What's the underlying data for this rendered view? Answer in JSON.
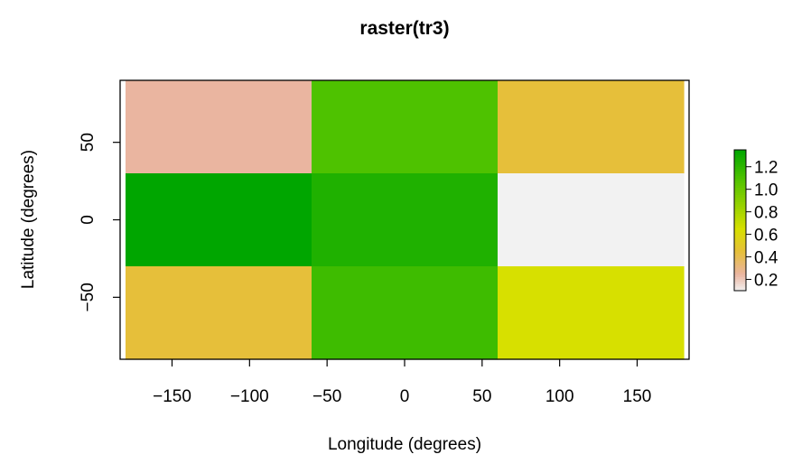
{
  "chart_data": {
    "type": "heatmap",
    "title": "raster(tr3)",
    "xlabel": "Longitude (degrees)",
    "ylabel": "Latitude (degrees)",
    "xlim": [
      -180,
      180
    ],
    "ylim": [
      -90,
      90
    ],
    "x_ticks": [
      -150,
      -100,
      -50,
      0,
      50,
      100,
      150
    ],
    "y_ticks": [
      -50,
      0,
      50
    ],
    "x_tick_labels": [
      "−150",
      "−100",
      "−50",
      "0",
      "50",
      "100",
      "150"
    ],
    "y_tick_labels": [
      "−50",
      "0",
      "50"
    ],
    "x_edges": [
      -180,
      -60,
      60,
      180
    ],
    "y_edges": [
      90,
      30,
      -30,
      -90
    ],
    "values": [
      [
        0.25,
        1.1,
        0.45
      ],
      [
        1.35,
        1.25,
        0.1
      ],
      [
        0.45,
        1.15,
        0.65
      ]
    ],
    "legend": {
      "placement": "right",
      "range": [
        0.1,
        1.35
      ],
      "ticks": [
        0.2,
        0.4,
        0.6,
        0.8,
        1.0,
        1.2
      ],
      "tick_labels": [
        "0.2",
        "0.4",
        "0.6",
        "0.8",
        "1.0",
        "1.2"
      ]
    },
    "colors": {
      "stops": [
        "#f2f2f2",
        "#eab5a0",
        "#e6bf3a",
        "#d7e000",
        "#4ec200",
        "#00a600"
      ],
      "stop_values": [
        0.1,
        0.25,
        0.45,
        0.65,
        1.1,
        1.35
      ]
    },
    "grid": false
  }
}
